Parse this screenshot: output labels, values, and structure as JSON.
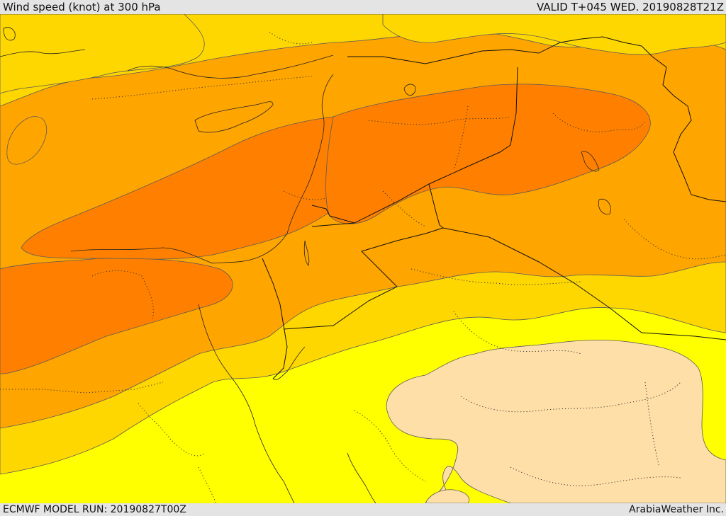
{
  "header": {
    "title": "Wind speed (knot) at 300 hPa",
    "valid": "VALID T+045 WED. 20190828T21Z"
  },
  "footer": {
    "model_run": "ECMWF MODEL RUN: 20190827T00Z",
    "credit": "ArabiaWeather Inc."
  },
  "colors": {
    "band_1": "#ffff00",
    "band_2": "#ffd700",
    "band_3": "#ffa500",
    "band_4": "#ff8000",
    "low_pocket": "#ffdfa8"
  }
}
